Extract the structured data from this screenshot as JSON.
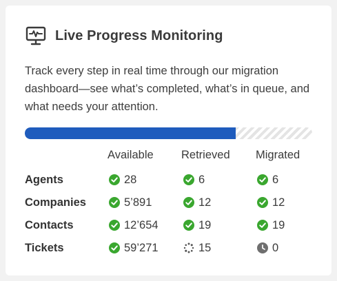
{
  "header": {
    "icon": "monitor-pulse-icon",
    "title": "Live Progress Monitoring"
  },
  "description": "Track every step in real time through our migration dashboard—see what’s completed, what’s in queue, and what needs your attention.",
  "progress": {
    "fraction": 0.735,
    "fill_color": "#1f5cbd"
  },
  "columns": {
    "available": "Available",
    "retrieved": "Retrieved",
    "migrated": "Migrated"
  },
  "rows": [
    {
      "label": "Agents",
      "available": {
        "value": "28",
        "status": "done"
      },
      "retrieved": {
        "value": "6",
        "status": "done"
      },
      "migrated": {
        "value": "6",
        "status": "done"
      }
    },
    {
      "label": "Companies",
      "available": {
        "value": "5’891",
        "status": "done"
      },
      "retrieved": {
        "value": "12",
        "status": "done"
      },
      "migrated": {
        "value": "12",
        "status": "done"
      }
    },
    {
      "label": "Contacts",
      "available": {
        "value": "12’654",
        "status": "done"
      },
      "retrieved": {
        "value": "19",
        "status": "done"
      },
      "migrated": {
        "value": "19",
        "status": "done"
      }
    },
    {
      "label": "Tickets",
      "available": {
        "value": "59’271",
        "status": "done"
      },
      "retrieved": {
        "value": "15",
        "status": "loading"
      },
      "migrated": {
        "value": "0",
        "status": "pending"
      }
    }
  ],
  "icons": {
    "done": "check-circle-icon",
    "loading": "spinner-icon",
    "pending": "clock-icon"
  },
  "colors": {
    "done": "#3aa72f",
    "pending": "#6f6f6f",
    "spinner": "#555555"
  }
}
